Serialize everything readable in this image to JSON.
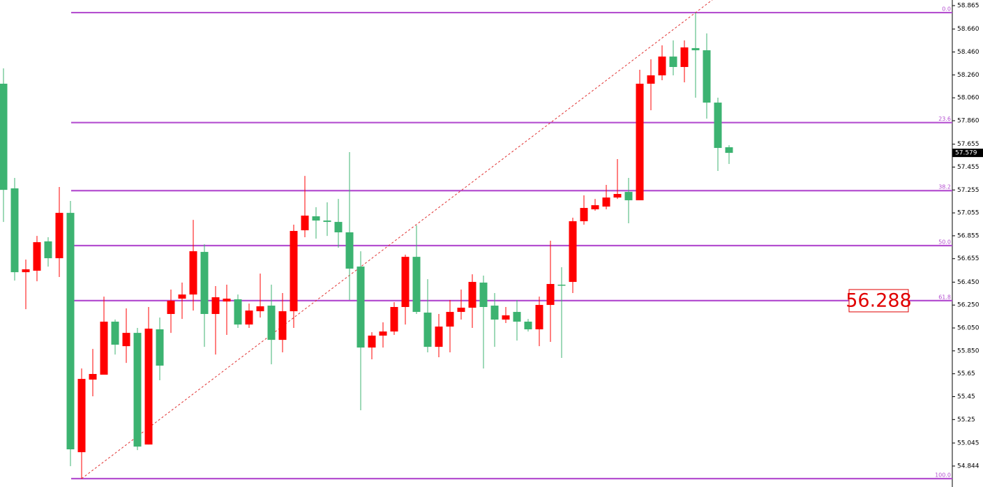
{
  "chart_data": {
    "type": "candlestick",
    "up_color": "#ff0000",
    "down_color": "#3cb371",
    "open": [
      58.183,
      57.269,
      56.537,
      56.55,
      56.806,
      56.659,
      57.055,
      54.965,
      55.599,
      55.642,
      56.105,
      55.891,
      56.007,
      55.032,
      56.038,
      56.172,
      56.306,
      56.342,
      56.714,
      56.172,
      56.281,
      56.3,
      56.08,
      56.196,
      56.245,
      55.946,
      56.196,
      56.903,
      57.025,
      56.988,
      56.976,
      56.885,
      56.586,
      55.879,
      55.983,
      56.019,
      56.233,
      56.671,
      56.184,
      55.885,
      56.062,
      56.19,
      56.227,
      56.446,
      56.245,
      56.123,
      56.19,
      56.105,
      56.038,
      56.251,
      56.428,
      56.452,
      56.982,
      57.086,
      57.11,
      57.189,
      57.238,
      57.165,
      58.183,
      58.256,
      58.42,
      58.329,
      58.494,
      58.475,
      58.018,
      57.628
    ],
    "high": [
      58.317,
      57.36,
      56.647,
      56.854,
      56.842,
      57.281,
      57.159,
      55.696,
      55.867,
      56.324,
      56.123,
      56.221,
      56.05,
      56.233,
      56.141,
      56.385,
      56.446,
      56.994,
      56.781,
      56.416,
      56.428,
      56.342,
      56.263,
      56.525,
      56.428,
      56.355,
      56.952,
      57.378,
      57.104,
      57.147,
      57.177,
      57.586,
      56.72,
      56.013,
      56.099,
      56.275,
      56.69,
      56.946,
      56.476,
      56.172,
      56.294,
      56.385,
      56.519,
      56.507,
      56.355,
      56.233,
      56.294,
      56.129,
      56.324,
      56.812,
      56.58,
      57.013,
      57.208,
      57.177,
      57.299,
      57.525,
      57.36,
      58.305,
      58.396,
      58.518,
      58.561,
      58.561,
      58.804,
      58.622,
      58.061,
      57.646
    ],
    "low": [
      56.976,
      56.464,
      56.214,
      56.458,
      56.586,
      56.495,
      54.843,
      54.734,
      55.453,
      55.642,
      55.818,
      55.745,
      54.983,
      55.032,
      55.593,
      56.007,
      56.129,
      56.202,
      55.885,
      55.818,
      55.989,
      56.05,
      56.05,
      56.141,
      55.733,
      55.837,
      56.05,
      56.842,
      56.83,
      56.854,
      56.751,
      56.294,
      55.331,
      55.776,
      55.879,
      55.989,
      56.08,
      56.172,
      55.837,
      55.794,
      55.837,
      56.123,
      56.05,
      55.696,
      55.885,
      56.093,
      55.94,
      56.019,
      55.891,
      55.928,
      55.788,
      56.355,
      56.952,
      57.074,
      57.086,
      57.177,
      56.964,
      57.165,
      57.951,
      58.213,
      58.256,
      58.195,
      58.061,
      57.878,
      57.421,
      57.482
    ],
    "close": [
      57.256,
      56.537,
      56.562,
      56.799,
      56.659,
      57.055,
      54.99,
      55.605,
      55.648,
      56.105,
      55.904,
      56.007,
      55.014,
      56.044,
      55.721,
      56.288,
      56.342,
      56.72,
      56.172,
      56.318,
      56.306,
      56.08,
      56.202,
      56.239,
      55.946,
      56.196,
      56.897,
      57.031,
      56.988,
      56.976,
      56.885,
      56.568,
      55.879,
      55.983,
      56.019,
      56.233,
      56.671,
      56.19,
      55.885,
      56.062,
      56.19,
      56.227,
      56.452,
      56.233,
      56.123,
      56.16,
      56.105,
      56.038,
      56.251,
      56.434,
      56.422,
      56.982,
      57.098,
      57.122,
      57.189,
      57.22,
      57.165,
      58.183,
      58.256,
      58.42,
      58.329,
      58.5,
      58.475,
      58.018,
      57.622,
      57.579
    ],
    "ylim": [
      54.661,
      58.914
    ],
    "yticks": [
      58.865,
      {
        "value": 58.66,
        "label": "58.660"
      },
      {
        "value": 58.46,
        "label": "58.460"
      },
      {
        "value": 58.26,
        "label": "58.260"
      },
      {
        "value": 58.06,
        "label": "58.060"
      },
      {
        "value": 57.86,
        "label": "57.860"
      },
      57.655,
      57.455,
      57.255,
      57.055,
      56.855,
      56.655,
      {
        "value": 56.45,
        "label": "56.450"
      },
      {
        "value": 56.25,
        "label": "56.250"
      },
      {
        "value": 56.05,
        "label": "56.050"
      },
      {
        "value": 55.85,
        "label": "55.850"
      },
      55.65,
      55.45,
      55.25,
      55.045,
      54.844
    ],
    "fibonacci": {
      "color": "#b44fd0",
      "high": 58.804,
      "low": 54.734,
      "levels": [
        {
          "value": 0,
          "label": "0.0"
        },
        23.6,
        38.2,
        {
          "value": 50,
          "label": "50.0"
        },
        61.8,
        {
          "value": 100,
          "label": "100.0"
        }
      ]
    },
    "trend_color": "#e03030",
    "current_price": 57.579,
    "annotation": 56.288
  }
}
